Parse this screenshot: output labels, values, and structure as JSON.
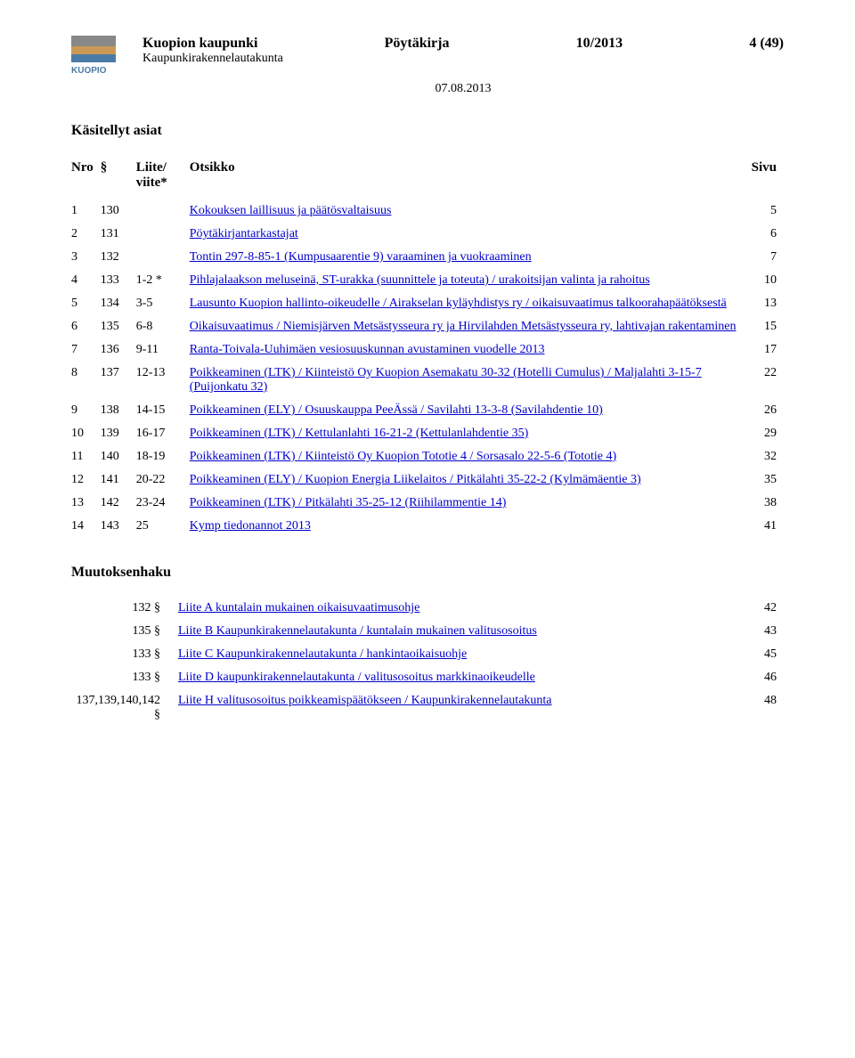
{
  "header": {
    "org": "Kuopion kaupunki",
    "suborg": "Kaupunkirakennelautakunta",
    "doc_type": "Pöytäkirja",
    "doc_number": "10/2013",
    "page_marker": "4 (49)",
    "date": "07.08.2013",
    "logo_text": "KUOPIO"
  },
  "section1_title": "Käsitellyt asiat",
  "columns": {
    "nro": "Nro",
    "sym": "§",
    "liite": "Liite/\nviite*",
    "title": "Otsikko",
    "page": "Sivu"
  },
  "rows": [
    {
      "nro": "1",
      "sym": "130",
      "liite": "",
      "title": "Kokouksen laillisuus ja päätösvaltaisuus",
      "page": "5"
    },
    {
      "nro": "2",
      "sym": "131",
      "liite": "",
      "title": "Pöytäkirjantarkastajat",
      "page": "6"
    },
    {
      "nro": "3",
      "sym": "132",
      "liite": "",
      "title": "Tontin 297-8-85-1 (Kumpusaarentie 9) varaaminen ja vuokraaminen",
      "page": "7"
    },
    {
      "nro": "4",
      "sym": "133",
      "liite": "1-2 *",
      "title": "Pihlajalaakson meluseinä, ST-urakka (suunnittele ja toteuta) / urakoitsijan valinta ja rahoitus",
      "page": "10"
    },
    {
      "nro": "5",
      "sym": "134",
      "liite": "3-5",
      "title": "Lausunto Kuopion hallinto-oikeudelle / Airakselan kyläyhdistys ry / oikaisuvaatimus talkoorahapäätöksestä",
      "page": "13"
    },
    {
      "nro": "6",
      "sym": "135",
      "liite": "6-8",
      "title": "Oikaisuvaatimus / Niemisjärven Metsästysseura ry ja Hirvilahden Metsästysseura ry, lahtivajan rakentaminen",
      "page": "15"
    },
    {
      "nro": "7",
      "sym": "136",
      "liite": "9-11",
      "title": "Ranta-Toivala-Uuhimäen vesiosuuskunnan avustaminen vuodelle 2013",
      "page": "17"
    },
    {
      "nro": "8",
      "sym": "137",
      "liite": "12-13",
      "title": "Poikkeaminen (LTK) / Kiinteistö Oy Kuopion Asemakatu 30-32 (Hotelli Cumulus) / Maljalahti 3-15-7 (Puijonkatu 32)",
      "page": "22"
    },
    {
      "nro": "9",
      "sym": "138",
      "liite": "14-15",
      "title": "Poikkeaminen (ELY) / Osuuskauppa PeeÄssä / Savilahti 13-3-8 (Savilahdentie 10)",
      "page": "26"
    },
    {
      "nro": "10",
      "sym": "139",
      "liite": "16-17",
      "title": "Poikkeaminen (LTK) / Kettulanlahti 16-21-2 (Kettulanlahdentie 35)",
      "page": "29"
    },
    {
      "nro": "11",
      "sym": "140",
      "liite": "18-19",
      "title": "Poikkeaminen (LTK) / Kiinteistö Oy Kuopion Tototie 4 / Sorsasalo 22-5-6 (Tototie 4)",
      "page": "32"
    },
    {
      "nro": "12",
      "sym": "141",
      "liite": "20-22",
      "title": "Poikkeaminen (ELY) / Kuopion Energia Liikelaitos / Pitkälahti 35-22-2 (Kylmämäentie 3)",
      "page": "35"
    },
    {
      "nro": "13",
      "sym": "142",
      "liite": "23-24",
      "title": "Poikkeaminen (LTK) / Pitkälahti 35-25-12 (Riihilammentie 14)",
      "page": "38"
    },
    {
      "nro": "14",
      "sym": "143",
      "liite": "25",
      "title": "Kymp tiedonannot 2013",
      "page": "41"
    }
  ],
  "section2_title": "Muutoksenhaku",
  "appeals": [
    {
      "liite": "132 §",
      "title": "Liite A kuntalain mukainen oikaisuvaatimusohje",
      "page": "42"
    },
    {
      "liite": "135 §",
      "title": "Liite B Kaupunkirakennelautakunta / kuntalain mukainen valitusosoitus",
      "page": "43"
    },
    {
      "liite": "133 §",
      "title": "Liite C Kaupunkirakennelautakunta / hankintaoikaisuohje",
      "page": "45"
    },
    {
      "liite": "133 §",
      "title": "Liite D kaupunkirakennelautakunta / valitusosoitus markkinaoikeudelle",
      "page": "46"
    },
    {
      "liite": "137,139,140,142 §",
      "title": "Liite H valitusosoitus poikkeamispäätökseen / Kaupunkirakennelautakunta",
      "page": "48"
    }
  ],
  "style": {
    "link_color": "#0000cc",
    "text_color": "#000000",
    "background": "#ffffff",
    "logo_color": "#4a7ba6"
  }
}
